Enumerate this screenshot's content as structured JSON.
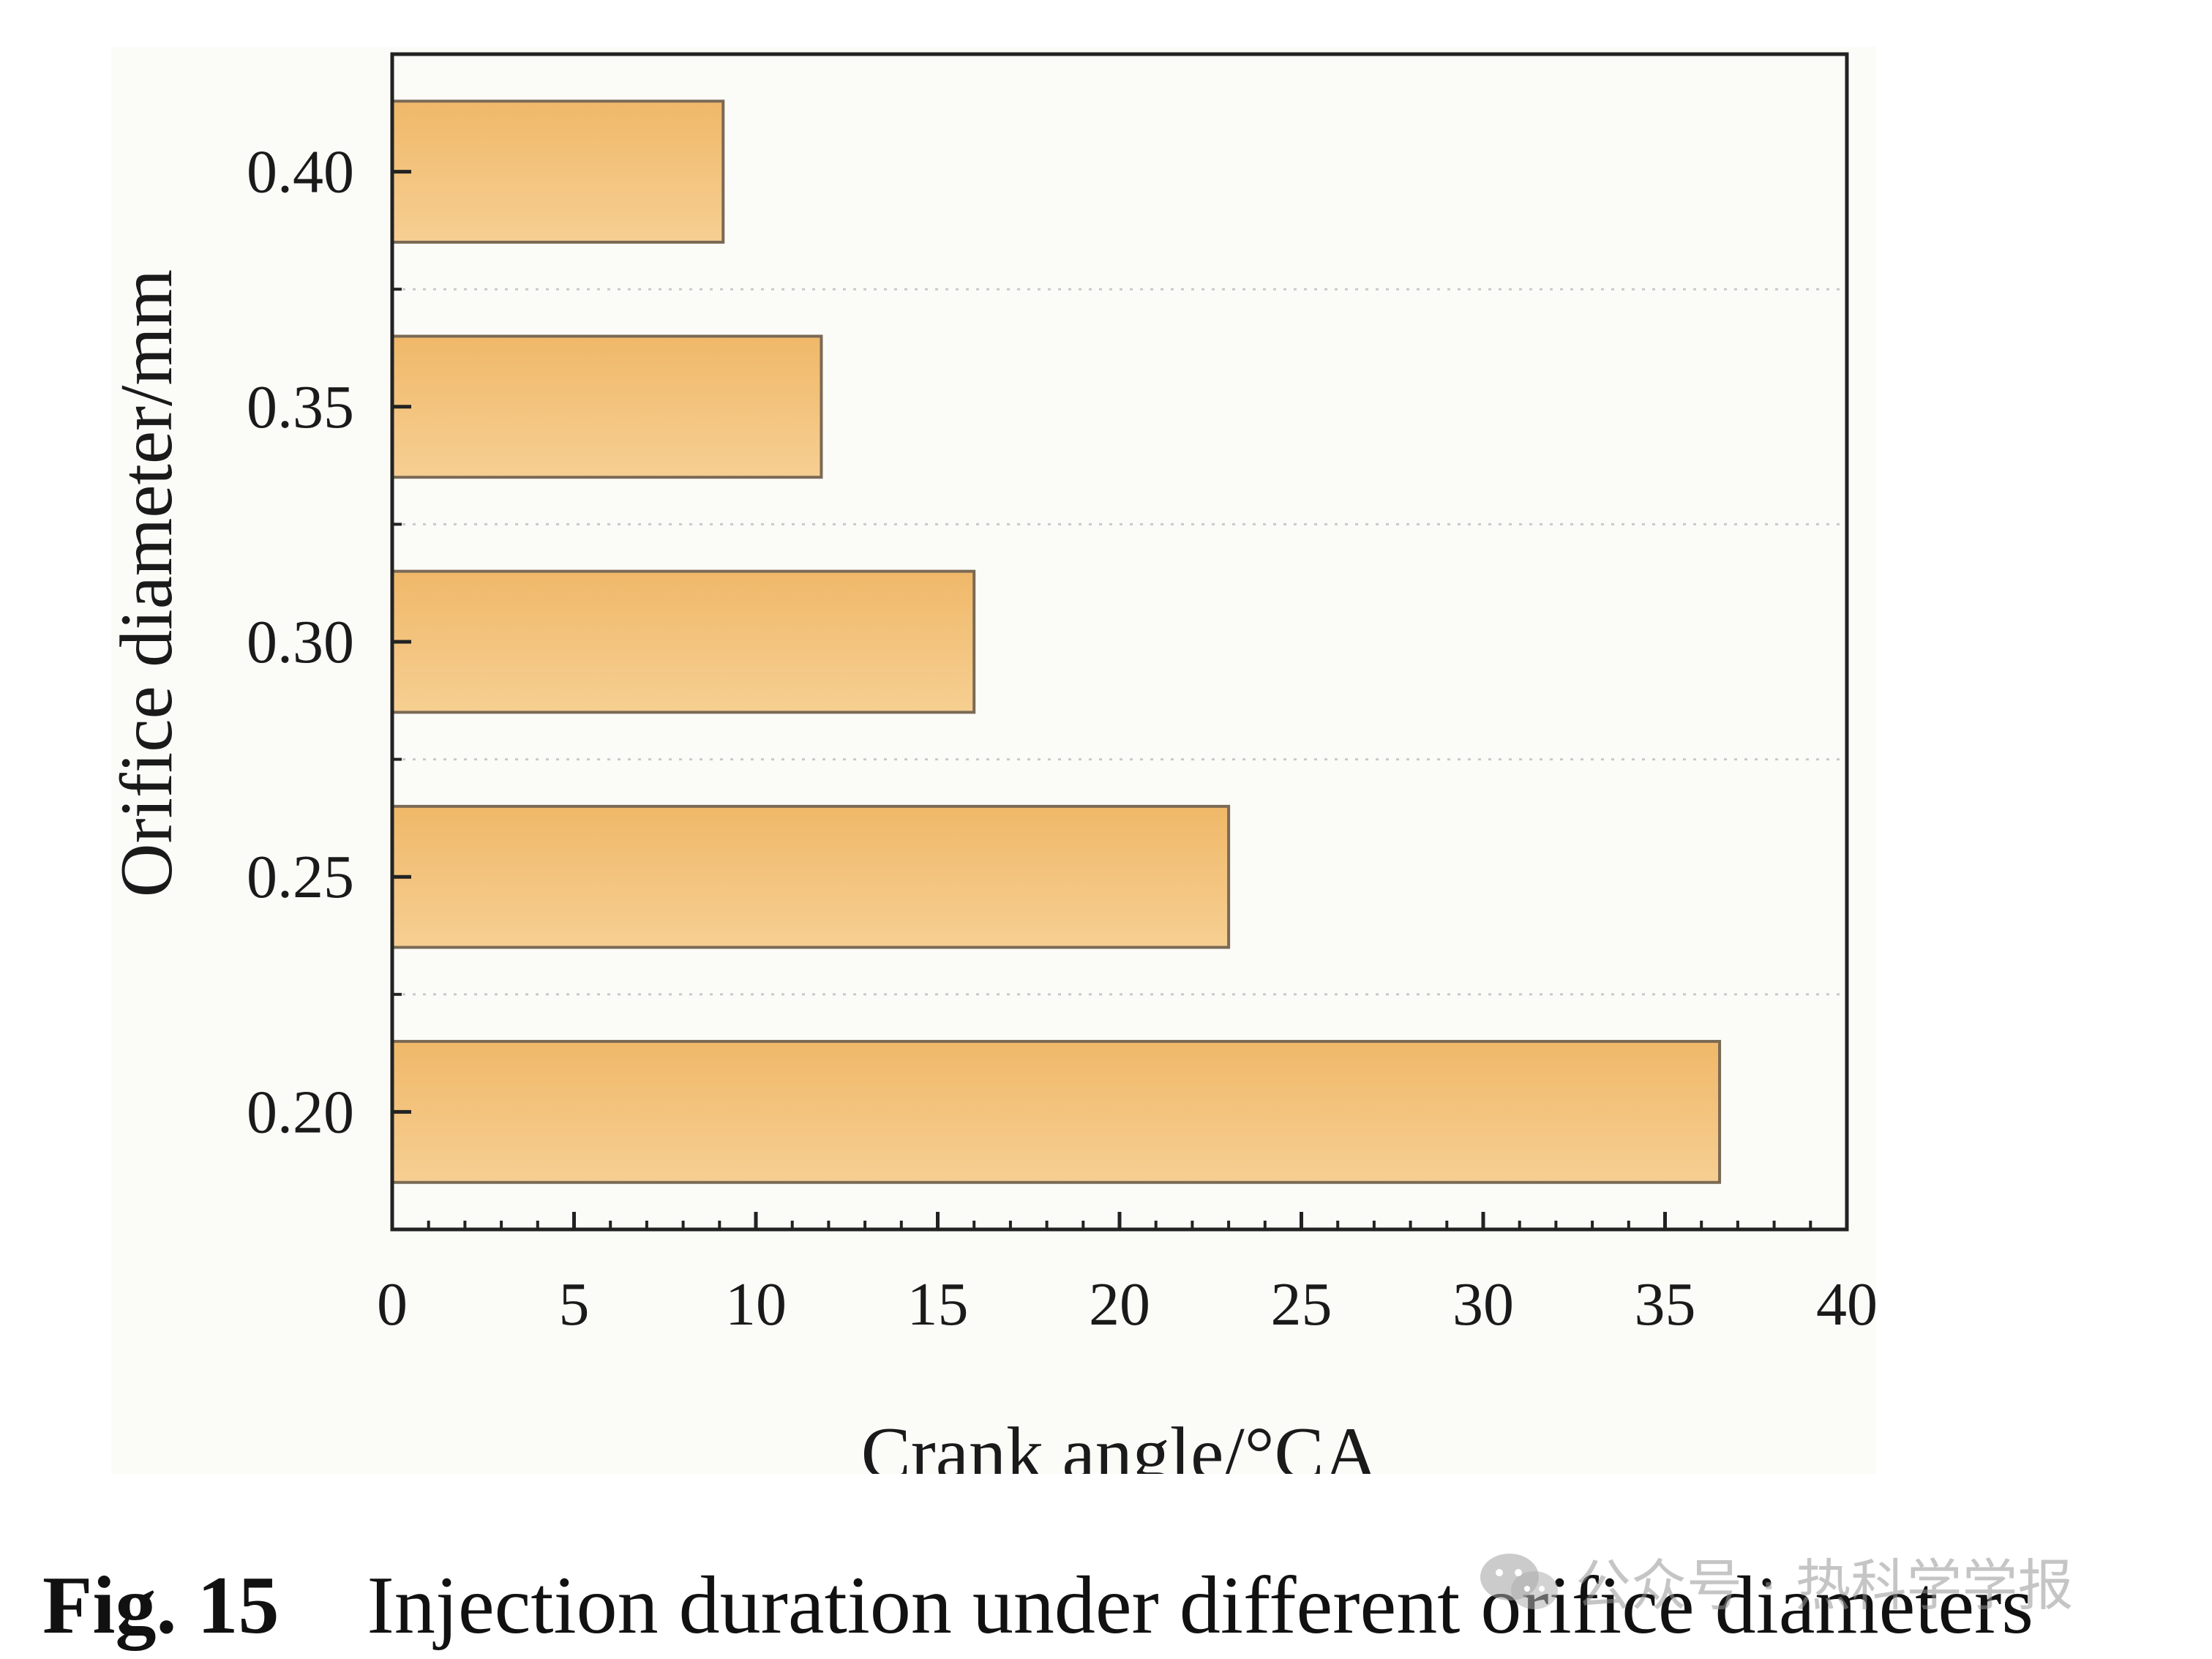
{
  "chart_data": {
    "type": "bar",
    "orientation": "horizontal",
    "categories": [
      "0.20",
      "0.25",
      "0.30",
      "0.35",
      "0.40"
    ],
    "values": [
      36.5,
      23.0,
      16.0,
      11.8,
      9.1
    ],
    "xlabel": "Crank angle/°CA",
    "ylabel": "Orifice diameter/mm",
    "xlim": [
      0,
      40
    ],
    "xticks": [
      "0",
      "5",
      "10",
      "15",
      "20",
      "25",
      "30",
      "35",
      "40"
    ],
    "grid": "horizontal dotted",
    "bar_color": "#f0b869",
    "bar_color_light": "#f6cf92",
    "bar_edge": "#7a6a55"
  },
  "caption": {
    "label": "Fig. 15",
    "text": "Injection duration under different orifice diameters"
  },
  "watermark": {
    "text": "公众号 · 热科学学报",
    "icon": "wechat-icon"
  }
}
